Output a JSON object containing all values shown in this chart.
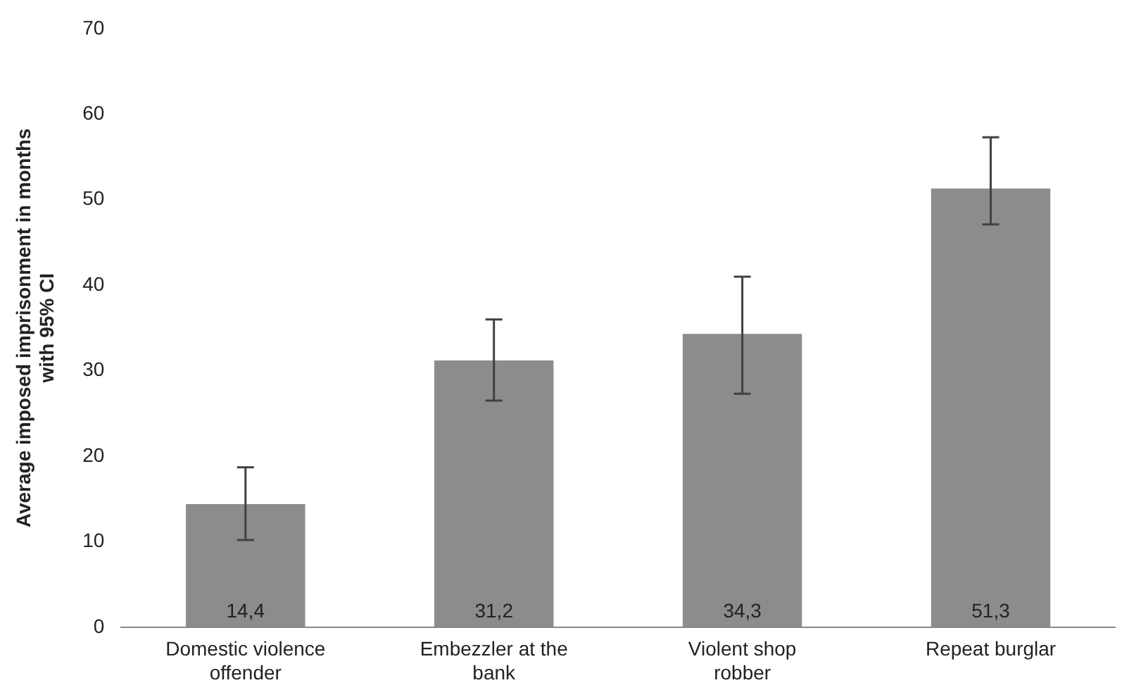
{
  "chart_data": {
    "type": "bar",
    "ylabel": "Average imposed imprisonment in months\nwith 95% CI",
    "categories": [
      "Domestic violence offender",
      "Embezzler at the bank",
      "Violent shop robber",
      "Repeat burglar"
    ],
    "values": [
      14.4,
      31.2,
      34.3,
      51.3
    ],
    "value_labels": [
      "14,4",
      "31,2",
      "34,3",
      "51,3"
    ],
    "errors": [
      [
        10.2,
        18.7
      ],
      [
        26.5,
        36.0
      ],
      [
        27.3,
        41.0
      ],
      [
        47.1,
        57.3
      ]
    ],
    "color": "#8c8c8c",
    "ylim": [
      0,
      70
    ],
    "yticks": [
      0,
      10,
      20,
      30,
      40,
      50,
      60,
      70
    ],
    "grid": false,
    "legend": false
  }
}
